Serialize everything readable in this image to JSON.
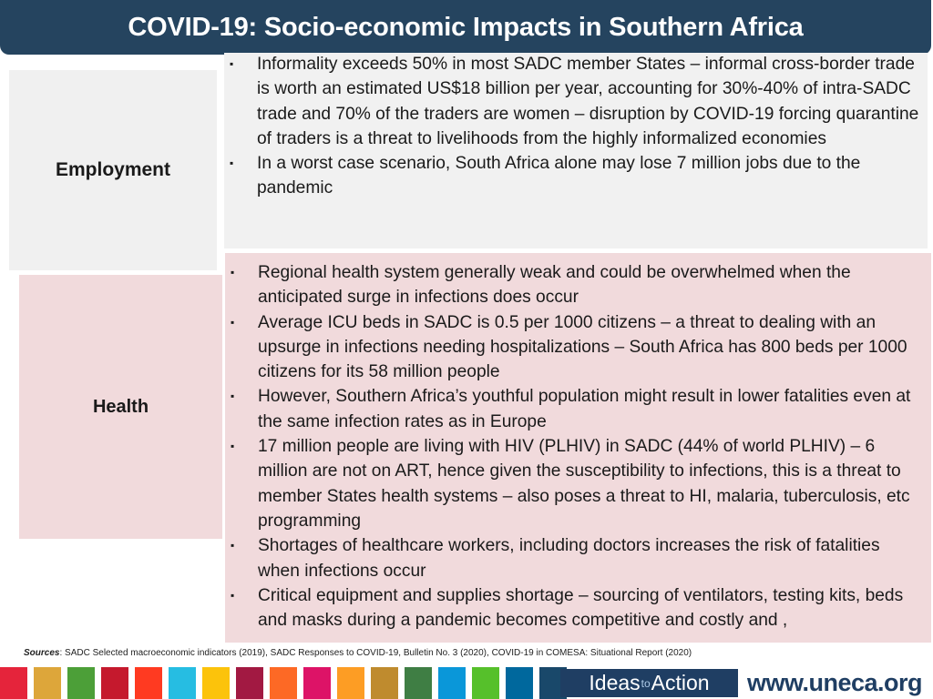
{
  "title": "COVID-19: Socio-economic Impacts in Southern Africa",
  "bullet_glyph": "▪",
  "employment": {
    "label": "Employment",
    "bullets": [
      "Informality exceeds 50% in most SADC member States – informal cross-border trade is worth an estimated US$18 billion per year, accounting for 30%-40% of intra-SADC trade and 70% of the traders are women – disruption by COVID-19 forcing quarantine of traders is a threat to livelihoods from the highly informalized economies",
      "In a worst case scenario, South Africa alone may lose 7 million jobs due to the pandemic"
    ]
  },
  "health": {
    "label": "Health",
    "bullets": [
      "Regional health system generally weak and could be overwhelmed when the anticipated surge in infections  does occur",
      "Average ICU beds in SADC is 0.5 per 1000 citizens – a threat to dealing with an upsurge in infections needing hospitalizations – South Africa has 800 beds per 1000 citizens for its 58 million people",
      "However, Southern Africa’s youthful population might result in lower fatalities even at the same infection rates as in Europe",
      "17 million people are living with HIV (PLHIV) in SADC (44% of world PLHIV) – 6 million are not on ART, hence given the susceptibility to infections, this is a threat to member States health systems – also poses a threat to HI, malaria, tuberculosis, etc programming",
      "Shortages of healthcare workers, including doctors increases the risk of fatalities when infections occur",
      "Critical equipment and supplies shortage – sourcing of ventilators, testing kits, beds and masks during a pandemic becomes competitive and costly and ,"
    ]
  },
  "sources": {
    "label": "Sources",
    "text": ":  SADC Selected macroeconomic indicators (2019), SADC Responses to COVID-19, Bulletin No. 3 (2020), COVID-19 in COMESA: Situational Report (2020)"
  },
  "footer": {
    "sdg_colors": [
      "#e5243b",
      "#dda63a",
      "#4c9f38",
      "#c5192d",
      "#ff3a21",
      "#26bde2",
      "#fcc30b",
      "#a21942",
      "#fd6925",
      "#dd1367",
      "#fd9d24",
      "#bf8b2e",
      "#3f7e44",
      "#0a97d9",
      "#56c02b",
      "#00689d",
      "#19486a"
    ],
    "ideas_part1": "Ideas",
    "ideas_part2": "to",
    "ideas_part3": "Action",
    "url": "www.uneca.org"
  }
}
